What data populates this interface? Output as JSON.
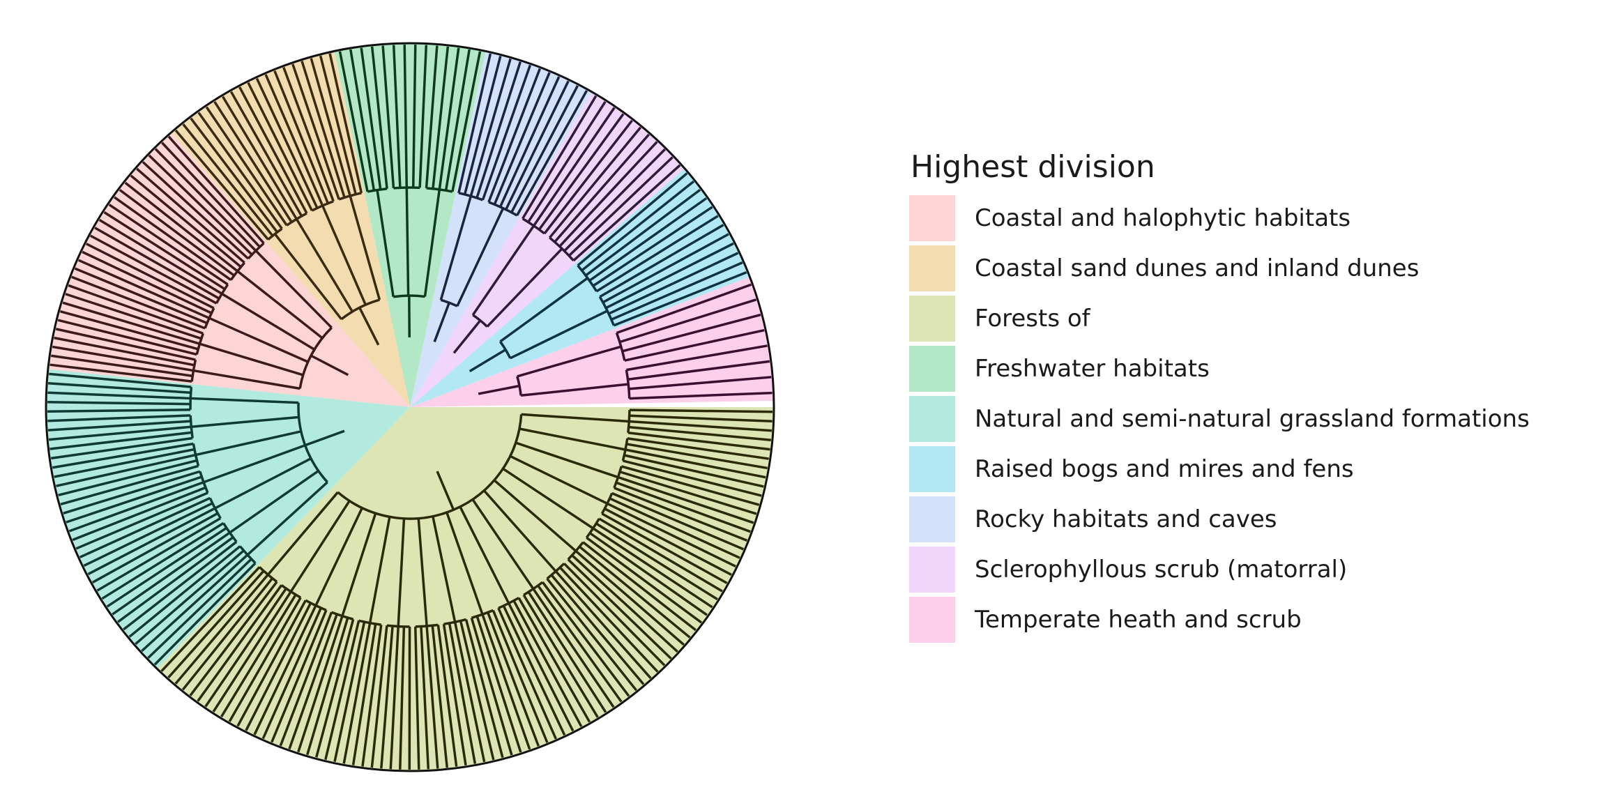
{
  "legend": {
    "title": "Highest division",
    "items": [
      {
        "label": "Coastal and halophytic habitats",
        "color": "#fdd5d5",
        "stroke": "#3a1a1a"
      },
      {
        "label": "Coastal sand dunes and inland dunes",
        "color": "#f2dcb0",
        "stroke": "#3a2a10"
      },
      {
        "label": "Forests of",
        "color": "#dde5b4",
        "stroke": "#2a2a08"
      },
      {
        "label": "Freshwater habitats",
        "color": "#b3e8c6",
        "stroke": "#0d3a1a"
      },
      {
        "label": "Natural and semi-natural grassland formations",
        "color": "#b2eadf",
        "stroke": "#0f3a33"
      },
      {
        "label": "Raised bogs and mires and fens",
        "color": "#b2e8f4",
        "stroke": "#0d3340"
      },
      {
        "label": "Rocky habitats and caves",
        "color": "#d3e1fb",
        "stroke": "#1a2340"
      },
      {
        "label": "Sclerophyllous scrub (matorral)",
        "color": "#f2d5fb",
        "stroke": "#2e1a3a"
      },
      {
        "label": "Temperate heath and scrub",
        "color": "#fccfeb",
        "stroke": "#3a1030"
      }
    ]
  },
  "dendrogram": {
    "sectors": [
      {
        "group": "Temperate heath and scrub",
        "start_deg": 359,
        "end_deg": 339,
        "leaves": 8
      },
      {
        "group": "Raised bogs and mires and fens",
        "start_deg": 339,
        "end_deg": 319,
        "leaves": 12
      },
      {
        "group": "Sclerophyllous scrub (matorral)",
        "start_deg": 319,
        "end_deg": 300,
        "leaves": 11
      },
      {
        "group": "Rocky habitats and caves",
        "start_deg": 300,
        "end_deg": 282,
        "leaves": 11
      },
      {
        "group": "Freshwater habitats",
        "start_deg": 282,
        "end_deg": 258,
        "leaves": 14
      },
      {
        "group": "Coastal sand dunes and inland dunes",
        "start_deg": 258,
        "end_deg": 229,
        "leaves": 19
      },
      {
        "group": "Coastal and halophytic habitats",
        "start_deg": 229,
        "end_deg": 186,
        "leaves": 30
      },
      {
        "group": "Natural and semi-natural grassland formations",
        "start_deg": 186,
        "end_deg": 134,
        "leaves": 35
      },
      {
        "group": "Forests of",
        "start_deg": 134,
        "end_deg": 0,
        "leaves": 90
      }
    ]
  }
}
